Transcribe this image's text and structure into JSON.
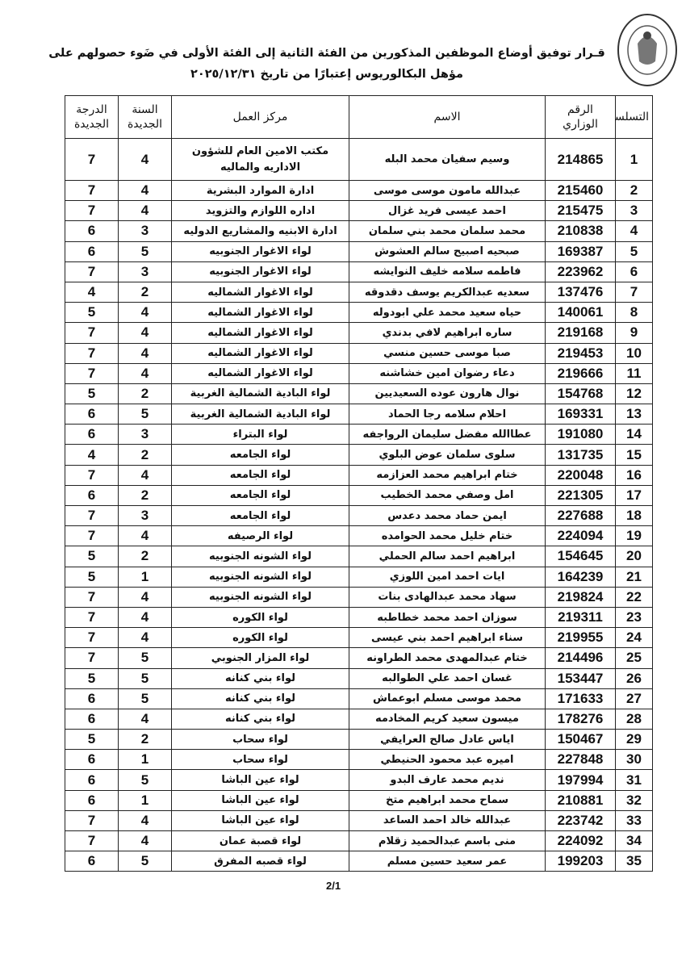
{
  "header": {
    "title_line1": "قـرار  توفيق أوضاع الموظفين المذكورين من الفئة الثانية إلى الفئة الأولى  في ضَوء حصولهم على",
    "title_line2": "مؤهل البكالوريوس  إعتبارًا من تاريخ ٢٠٢٥/١٢/٣١"
  },
  "table": {
    "columns": [
      "التسلسل",
      "الرقم الوزاري",
      "الاسم",
      "مركز العمل",
      "السنة الجديدة",
      "الدرجة الجديدة"
    ],
    "rows": [
      [
        "1",
        "214865",
        "وسيم سفيان محمد البله",
        "مكتب الامين العام للشؤون الاداريه والماليه",
        "4",
        "7"
      ],
      [
        "2",
        "215460",
        "عبدالله مامون موسى موسى",
        "ادارة الموارد البشرية",
        "4",
        "7"
      ],
      [
        "3",
        "215475",
        "احمد عيسى فريد غزال",
        "اداره اللوازم والتزويد",
        "4",
        "7"
      ],
      [
        "4",
        "210838",
        "محمد سلمان محمد بني سلمان",
        "ادارة الابنيه والمشاريع الدوليه",
        "3",
        "6"
      ],
      [
        "5",
        "169387",
        "صبحيه اصبيح سالم العشوش",
        "لواء الاغوار الجنوبيه",
        "5",
        "6"
      ],
      [
        "6",
        "223962",
        "فاطمه سلامه خليف النوايشه",
        "لواء الاغوار الجنوبيه",
        "3",
        "7"
      ],
      [
        "7",
        "137476",
        "سعديه عبدالكريم يوسف دقدوقه",
        "لواء الاغوار الشماليه",
        "2",
        "4"
      ],
      [
        "8",
        "140061",
        "حياه سعيد محمد علي ابودوله",
        "لواء الاغوار الشماليه",
        "4",
        "5"
      ],
      [
        "9",
        "219168",
        "ساره ابراهيم لافي بدندي",
        "لواء الاغوار الشماليه",
        "4",
        "7"
      ],
      [
        "10",
        "219453",
        "صبا موسى حسين منسي",
        "لواء الاغوار الشماليه",
        "4",
        "7"
      ],
      [
        "11",
        "219666",
        "دعاء رضوان امين خشاشنه",
        "لواء الاغوار الشماليه",
        "4",
        "7"
      ],
      [
        "12",
        "154768",
        "نوال هارون عوده السعيديين",
        "لواء البادية الشمالية الغربية",
        "2",
        "5"
      ],
      [
        "13",
        "169331",
        "احلام سلامه رجا الحماد",
        "لواء البادية الشمالية الغربية",
        "5",
        "6"
      ],
      [
        "14",
        "191080",
        "عطاالله مفضل سليمان الرواجفه",
        "لواء البتراء",
        "3",
        "6"
      ],
      [
        "15",
        "131735",
        "سلوى سلمان عوض البلوي",
        "لواء الجامعه",
        "2",
        "4"
      ],
      [
        "16",
        "220048",
        "ختام ابراهيم محمد العزازمه",
        "لواء الجامعه",
        "4",
        "7"
      ],
      [
        "17",
        "221305",
        "امل وصفي محمد الخطيب",
        "لواء الجامعه",
        "2",
        "6"
      ],
      [
        "18",
        "227688",
        "ايمن حماد محمد دعدس",
        "لواء الجامعه",
        "3",
        "7"
      ],
      [
        "19",
        "224094",
        "ختام خليل محمد الحوامده",
        "لواء الرصيفه",
        "4",
        "7"
      ],
      [
        "20",
        "154645",
        "ابراهيم احمد سالم الحملي",
        "لواء الشونه الجنوبيه",
        "2",
        "5"
      ],
      [
        "21",
        "164239",
        "ايات احمد امين اللوزي",
        "لواء الشونه الجنوبيه",
        "1",
        "5"
      ],
      [
        "22",
        "219824",
        "سهاد محمد عبدالهادى بنات",
        "لواء الشونه الجنوبيه",
        "4",
        "7"
      ],
      [
        "23",
        "219311",
        "سوزان احمد محمد خطاطبه",
        "لواء الكوره",
        "4",
        "7"
      ],
      [
        "24",
        "219955",
        "سناء ابراهيم احمد بني عيسى",
        "لواء الكوره",
        "4",
        "7"
      ],
      [
        "25",
        "214496",
        "ختام عبدالمهدى محمد الطراونه",
        "لواء المزار الجنوبي",
        "5",
        "7"
      ],
      [
        "26",
        "153447",
        "غسان احمد علي الطوالبه",
        "لواء بني كنانه",
        "5",
        "5"
      ],
      [
        "27",
        "171633",
        "محمد موسى مسلم ابوعماش",
        "لواء بني كنانه",
        "5",
        "6"
      ],
      [
        "28",
        "178276",
        "ميسون سعيد كريم المخادمه",
        "لواء بني كنانه",
        "4",
        "6"
      ],
      [
        "29",
        "150467",
        "اياس عادل صالح العرايفي",
        "لواء سحاب",
        "2",
        "5"
      ],
      [
        "30",
        "227848",
        "اميره عبد محمود الحنيطي",
        "لواء سحاب",
        "1",
        "6"
      ],
      [
        "31",
        "197994",
        "نديم محمد عارف البدو",
        "لواء عين الباشا",
        "5",
        "6"
      ],
      [
        "32",
        "210881",
        "سماح محمد ابراهيم متخ",
        "لواء عين الباشا",
        "1",
        "6"
      ],
      [
        "33",
        "223742",
        "عبدالله خالد احمد الساعد",
        "لواء عين الباشا",
        "4",
        "7"
      ],
      [
        "34",
        "224092",
        "منى باسم عبدالحميد زقلام",
        "لواء قصبة عمان",
        "4",
        "7"
      ],
      [
        "35",
        "199203",
        "عمر سعيد حسين مسلم",
        "لواء قصبه المفرق",
        "5",
        "6"
      ]
    ]
  },
  "footer": {
    "page": "2/1"
  }
}
